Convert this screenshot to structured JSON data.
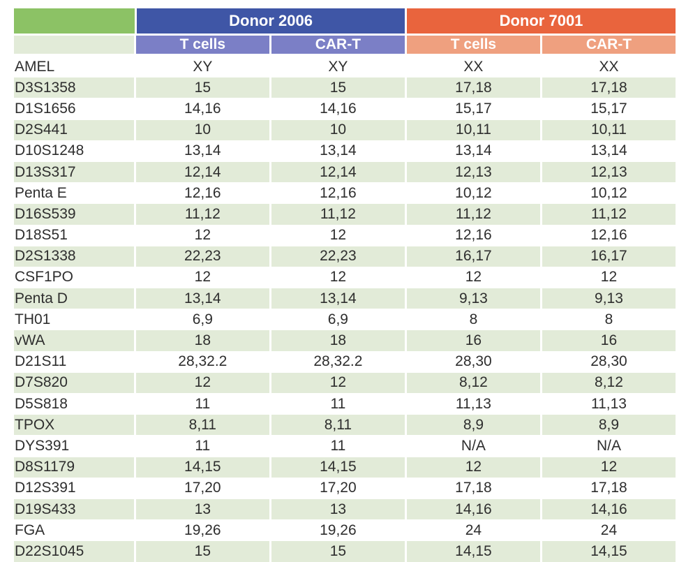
{
  "donors": [
    {
      "label": "Donor 2006",
      "color": "#3f56a6",
      "sub_color": "#7b7fc6"
    },
    {
      "label": "Donor 7001",
      "color": "#e9643d",
      "sub_color": "#efa07f"
    }
  ],
  "subheaders": [
    "T cells",
    "CAR-T",
    "T cells",
    "CAR-T"
  ],
  "rows": [
    {
      "locus": "AMEL",
      "values": [
        "XY",
        "XY",
        "XX",
        "XX"
      ]
    },
    {
      "locus": "D3S1358",
      "values": [
        "15",
        "15",
        "17,18",
        "17,18"
      ]
    },
    {
      "locus": "D1S1656",
      "values": [
        "14,16",
        "14,16",
        "15,17",
        "15,17"
      ]
    },
    {
      "locus": "D2S441",
      "values": [
        "10",
        "10",
        "10,11",
        "10,11"
      ]
    },
    {
      "locus": "D10S1248",
      "values": [
        "13,14",
        "13,14",
        "13,14",
        "13,14"
      ]
    },
    {
      "locus": "D13S317",
      "values": [
        "12,14",
        "12,14",
        "12,13",
        "12,13"
      ]
    },
    {
      "locus": "Penta E",
      "values": [
        "12,16",
        "12,16",
        "10,12",
        "10,12"
      ]
    },
    {
      "locus": "D16S539",
      "values": [
        "11,12",
        "11,12",
        "11,12",
        "11,12"
      ]
    },
    {
      "locus": "D18S51",
      "values": [
        "12",
        "12",
        "12,16",
        "12,16"
      ]
    },
    {
      "locus": "D2S1338",
      "values": [
        "22,23",
        "22,23",
        "16,17",
        "16,17"
      ]
    },
    {
      "locus": "CSF1PO",
      "values": [
        "12",
        "12",
        "12",
        "12"
      ]
    },
    {
      "locus": "Penta D",
      "values": [
        "13,14",
        "13,14",
        "9,13",
        "9,13"
      ]
    },
    {
      "locus": "TH01",
      "values": [
        "6,9",
        "6,9",
        "8",
        "8"
      ]
    },
    {
      "locus": "vWA",
      "values": [
        "18",
        "18",
        "16",
        "16"
      ]
    },
    {
      "locus": "D21S11",
      "values": [
        "28,32.2",
        "28,32.2",
        "28,30",
        "28,30"
      ]
    },
    {
      "locus": "D7S820",
      "values": [
        "12",
        "12",
        "8,12",
        "8,12"
      ]
    },
    {
      "locus": "D5S818",
      "values": [
        "11",
        "11",
        "11,13",
        "11,13"
      ]
    },
    {
      "locus": "TPOX",
      "values": [
        "8,11",
        "8,11",
        "8,9",
        "8,9"
      ]
    },
    {
      "locus": "DYS391",
      "values": [
        "11",
        "11",
        "N/A",
        "N/A"
      ]
    },
    {
      "locus": "D8S1179",
      "values": [
        "14,15",
        "14,15",
        "12",
        "12"
      ]
    },
    {
      "locus": "D12S391",
      "values": [
        "17,20",
        "17,20",
        "17,18",
        "17,18"
      ]
    },
    {
      "locus": "D19S433",
      "values": [
        "13",
        "13",
        "14,16",
        "14,16"
      ]
    },
    {
      "locus": "FGA",
      "values": [
        "19,26",
        "19,26",
        "24",
        "24"
      ]
    },
    {
      "locus": "D22S1045",
      "values": [
        "15",
        "15",
        "14,15",
        "14,15"
      ]
    }
  ]
}
